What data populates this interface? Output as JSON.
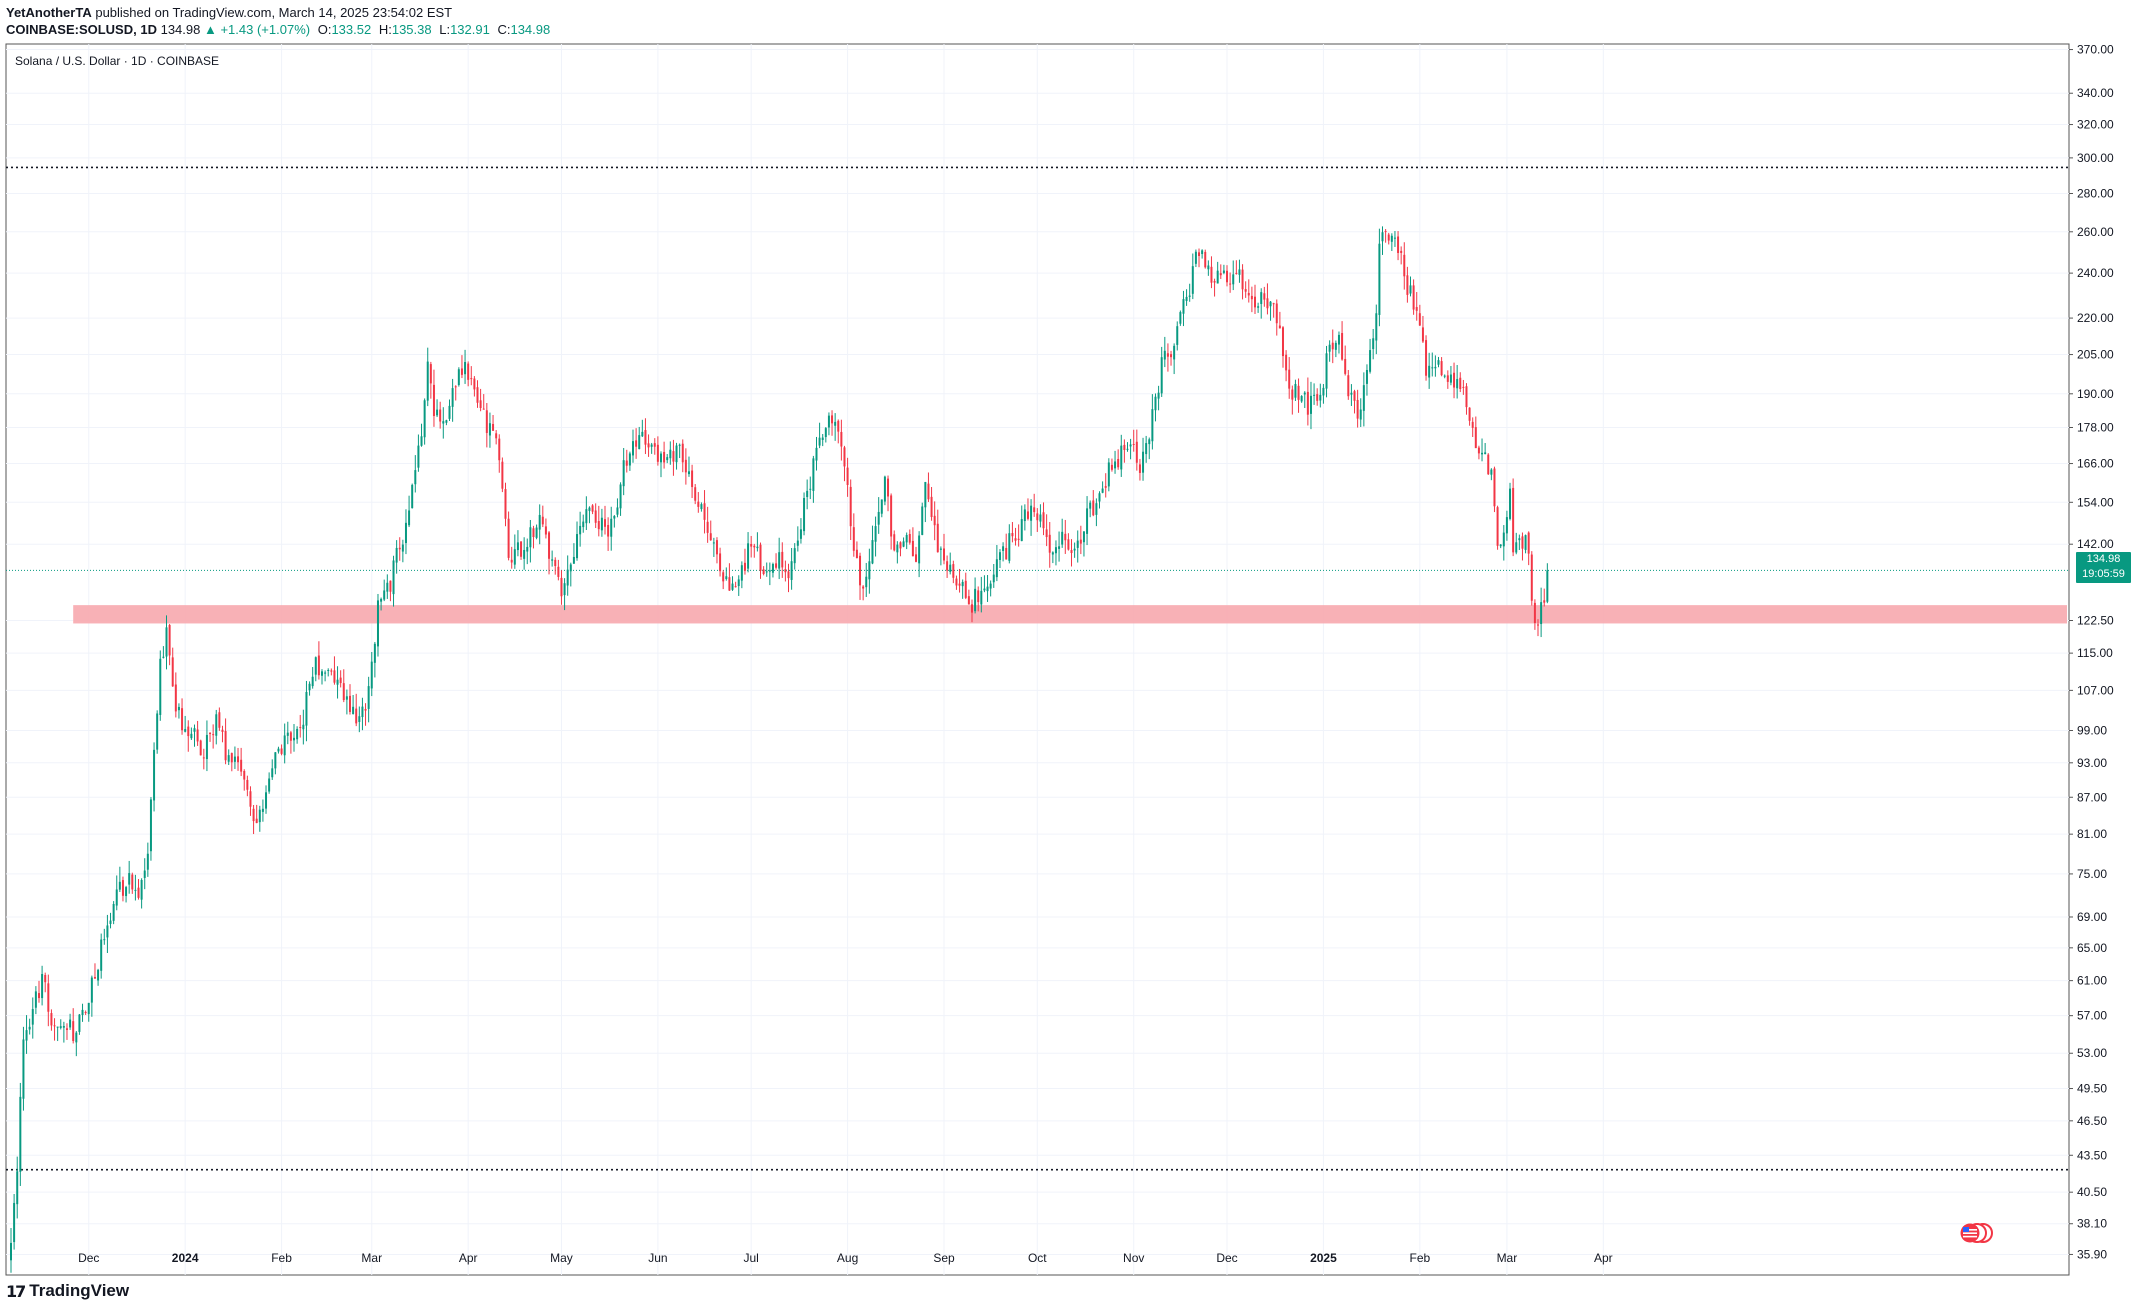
{
  "header": {
    "author": "YetAnotherTA",
    "published": "published on TradingView.com, March 14, 2025 23:54:02 EST",
    "symbol": "COINBASE:SOLUSD, 1D",
    "last": "134.98",
    "change": "▲ +1.43 (+1.07%)",
    "o_label": "O:",
    "o": "133.52",
    "h_label": "H:",
    "h": "135.38",
    "l_label": "L:",
    "l": "132.91",
    "c_label": "C:",
    "c": "134.98"
  },
  "chart_title": "Solana / U.S. Dollar · 1D · COINBASE",
  "price_badge": {
    "price": "134.98",
    "countdown": "19:05:59"
  },
  "brand": {
    "logo": "17",
    "name": "TradingView"
  },
  "colors": {
    "up": "#089981",
    "down": "#f23645",
    "zone": "#f7a8ae",
    "grid": "#f0f3fa"
  },
  "chart_data": {
    "type": "candlestick",
    "title": "Solana / U.S. Dollar · 1D · COINBASE",
    "scale": "log",
    "ylim": [
      34.5,
      374
    ],
    "y_ticks": [
      370,
      340,
      320,
      300,
      280,
      260,
      240,
      220,
      205,
      190,
      178,
      166,
      154,
      142,
      122.5,
      115,
      107,
      99,
      93,
      87,
      81,
      75,
      69,
      65,
      61,
      57,
      53,
      49.5,
      46.5,
      43.5,
      40.5,
      38.1,
      35.9
    ],
    "y_tick_labels": [
      "370.00",
      "340.00",
      "320.00",
      "300.00",
      "280.00",
      "260.00",
      "240.00",
      "220.00",
      "205.00",
      "190.00",
      "178.00",
      "166.00",
      "154.00",
      "142.00",
      "122.50",
      "115.00",
      "107.00",
      "99.00",
      "93.00",
      "87.00",
      "81.00",
      "75.00",
      "69.00",
      "65.00",
      "61.00",
      "57.00",
      "53.00",
      "49.50",
      "46.50",
      "43.50",
      "40.50",
      "38.10",
      "35.90"
    ],
    "x_labels": [
      "Dec",
      "2024",
      "Feb",
      "Mar",
      "Apr",
      "May",
      "Jun",
      "Jul",
      "Aug",
      "Sep",
      "Oct",
      "Nov",
      "Dec",
      "2025",
      "Feb",
      "Mar",
      "Apr"
    ],
    "x_label_dates": [
      "2023-12-01",
      "2024-01-01",
      "2024-02-01",
      "2024-03-01",
      "2024-04-01",
      "2024-05-01",
      "2024-06-01",
      "2024-07-01",
      "2024-08-01",
      "2024-09-01",
      "2024-10-01",
      "2024-11-01",
      "2024-12-01",
      "2025-01-01",
      "2025-02-01",
      "2025-03-01",
      "2025-04-01"
    ],
    "start_date": "2023-11-06",
    "end_date": "2025-03-14",
    "last_close": 134.98,
    "horizontal_lines": [
      {
        "price": 294.5,
        "style": "dotted"
      },
      {
        "price": 42.3,
        "style": "dotted"
      }
    ],
    "support_zone": {
      "low": 121.8,
      "high": 126.2,
      "from_date": "2023-11-26"
    },
    "price_path": [
      [
        "2023-11-06",
        37.5
      ],
      [
        "2023-11-08",
        42
      ],
      [
        "2023-11-10",
        55
      ],
      [
        "2023-11-13",
        57
      ],
      [
        "2023-11-16",
        62
      ],
      [
        "2023-11-19",
        56
      ],
      [
        "2023-11-22",
        57
      ],
      [
        "2023-11-27",
        55
      ],
      [
        "2023-12-02",
        61
      ],
      [
        "2023-12-05",
        65
      ],
      [
        "2023-12-08",
        70
      ],
      [
        "2023-12-11",
        73
      ],
      [
        "2023-12-14",
        74
      ],
      [
        "2023-12-17",
        73
      ],
      [
        "2023-12-20",
        77
      ],
      [
        "2023-12-22",
        95
      ],
      [
        "2023-12-24",
        112
      ],
      [
        "2023-12-26",
        120
      ],
      [
        "2023-12-29",
        103
      ],
      [
        "2024-01-03",
        98
      ],
      [
        "2024-01-07",
        95
      ],
      [
        "2024-01-11",
        100
      ],
      [
        "2024-01-15",
        94
      ],
      [
        "2024-01-19",
        91
      ],
      [
        "2024-01-23",
        83
      ],
      [
        "2024-01-27",
        88
      ],
      [
        "2024-01-31",
        95
      ],
      [
        "2024-02-04",
        97
      ],
      [
        "2024-02-08",
        102
      ],
      [
        "2024-02-12",
        113
      ],
      [
        "2024-02-16",
        110
      ],
      [
        "2024-02-20",
        107
      ],
      [
        "2024-02-24",
        102
      ],
      [
        "2024-02-26",
        100
      ],
      [
        "2024-02-29",
        107
      ],
      [
        "2024-03-03",
        125
      ],
      [
        "2024-03-07",
        132
      ],
      [
        "2024-03-11",
        145
      ],
      [
        "2024-03-14",
        160
      ],
      [
        "2024-03-17",
        175
      ],
      [
        "2024-03-19",
        200
      ],
      [
        "2024-03-21",
        185
      ],
      [
        "2024-03-24",
        180
      ],
      [
        "2024-03-27",
        193
      ],
      [
        "2024-03-31",
        200
      ],
      [
        "2024-04-03",
        188
      ],
      [
        "2024-04-07",
        180
      ],
      [
        "2024-04-11",
        170
      ],
      [
        "2024-04-14",
        140
      ],
      [
        "2024-04-17",
        140
      ],
      [
        "2024-04-20",
        142
      ],
      [
        "2024-04-24",
        152
      ],
      [
        "2024-04-27",
        140
      ],
      [
        "2024-05-01",
        130
      ],
      [
        "2024-05-05",
        140
      ],
      [
        "2024-05-09",
        150
      ],
      [
        "2024-05-13",
        147
      ],
      [
        "2024-05-16",
        145
      ],
      [
        "2024-05-19",
        155
      ],
      [
        "2024-05-22",
        168
      ],
      [
        "2024-05-26",
        176
      ],
      [
        "2024-05-30",
        170
      ],
      [
        "2024-06-03",
        168
      ],
      [
        "2024-06-07",
        170
      ],
      [
        "2024-06-10",
        165
      ],
      [
        "2024-06-13",
        155
      ],
      [
        "2024-06-16",
        148
      ],
      [
        "2024-06-20",
        140
      ],
      [
        "2024-06-24",
        130
      ],
      [
        "2024-06-27",
        132
      ],
      [
        "2024-07-01",
        142
      ],
      [
        "2024-07-05",
        135
      ],
      [
        "2024-07-09",
        138
      ],
      [
        "2024-07-13",
        135
      ],
      [
        "2024-07-16",
        145
      ],
      [
        "2024-07-20",
        160
      ],
      [
        "2024-07-24",
        178
      ],
      [
        "2024-07-28",
        183
      ],
      [
        "2024-07-31",
        168
      ],
      [
        "2024-08-03",
        140
      ],
      [
        "2024-08-06",
        130
      ],
      [
        "2024-08-09",
        145
      ],
      [
        "2024-08-13",
        160
      ],
      [
        "2024-08-16",
        140
      ],
      [
        "2024-08-20",
        145
      ],
      [
        "2024-08-23",
        140
      ],
      [
        "2024-08-26",
        160
      ],
      [
        "2024-08-29",
        145
      ],
      [
        "2024-09-02",
        135
      ],
      [
        "2024-09-06",
        130
      ],
      [
        "2024-09-10",
        127
      ],
      [
        "2024-09-14",
        131
      ],
      [
        "2024-09-18",
        135
      ],
      [
        "2024-09-22",
        142
      ],
      [
        "2024-09-26",
        148
      ],
      [
        "2024-09-30",
        153
      ],
      [
        "2024-10-03",
        145
      ],
      [
        "2024-10-06",
        138
      ],
      [
        "2024-10-09",
        143
      ],
      [
        "2024-10-13",
        138
      ],
      [
        "2024-10-16",
        148
      ],
      [
        "2024-10-20",
        155
      ],
      [
        "2024-10-24",
        163
      ],
      [
        "2024-10-28",
        170
      ],
      [
        "2024-10-31",
        175
      ],
      [
        "2024-11-03",
        162
      ],
      [
        "2024-11-06",
        175
      ],
      [
        "2024-11-10",
        200
      ],
      [
        "2024-11-14",
        210
      ],
      [
        "2024-11-18",
        228
      ],
      [
        "2024-11-21",
        245
      ],
      [
        "2024-11-23",
        255
      ],
      [
        "2024-11-26",
        235
      ],
      [
        "2024-11-29",
        240
      ],
      [
        "2024-12-02",
        235
      ],
      [
        "2024-12-05",
        240
      ],
      [
        "2024-12-09",
        225
      ],
      [
        "2024-12-12",
        228
      ],
      [
        "2024-12-15",
        225
      ],
      [
        "2024-12-18",
        215
      ],
      [
        "2024-12-21",
        190
      ],
      [
        "2024-12-24",
        192
      ],
      [
        "2024-12-27",
        185
      ],
      [
        "2024-12-31",
        190
      ],
      [
        "2025-01-03",
        210
      ],
      [
        "2025-01-06",
        215
      ],
      [
        "2025-01-09",
        190
      ],
      [
        "2025-01-12",
        185
      ],
      [
        "2025-01-15",
        195
      ],
      [
        "2025-01-18",
        220
      ],
      [
        "2025-01-19",
        255
      ],
      [
        "2025-01-21",
        260
      ],
      [
        "2025-01-23",
        255
      ],
      [
        "2025-01-26",
        250
      ],
      [
        "2025-01-28",
        235
      ],
      [
        "2025-02-01",
        215
      ],
      [
        "2025-02-03",
        200
      ],
      [
        "2025-02-06",
        198
      ],
      [
        "2025-02-09",
        200
      ],
      [
        "2025-02-12",
        195
      ],
      [
        "2025-02-15",
        195
      ],
      [
        "2025-02-18",
        175
      ],
      [
        "2025-02-21",
        168
      ],
      [
        "2025-02-24",
        162
      ],
      [
        "2025-02-26",
        140
      ],
      [
        "2025-02-28",
        142
      ],
      [
        "2025-03-02",
        160
      ],
      [
        "2025-03-03",
        140
      ],
      [
        "2025-03-06",
        143
      ],
      [
        "2025-03-08",
        140
      ],
      [
        "2025-03-09",
        130
      ],
      [
        "2025-03-10",
        122
      ],
      [
        "2025-03-12",
        125
      ],
      [
        "2025-03-13",
        127
      ],
      [
        "2025-03-14",
        134.98
      ]
    ]
  }
}
